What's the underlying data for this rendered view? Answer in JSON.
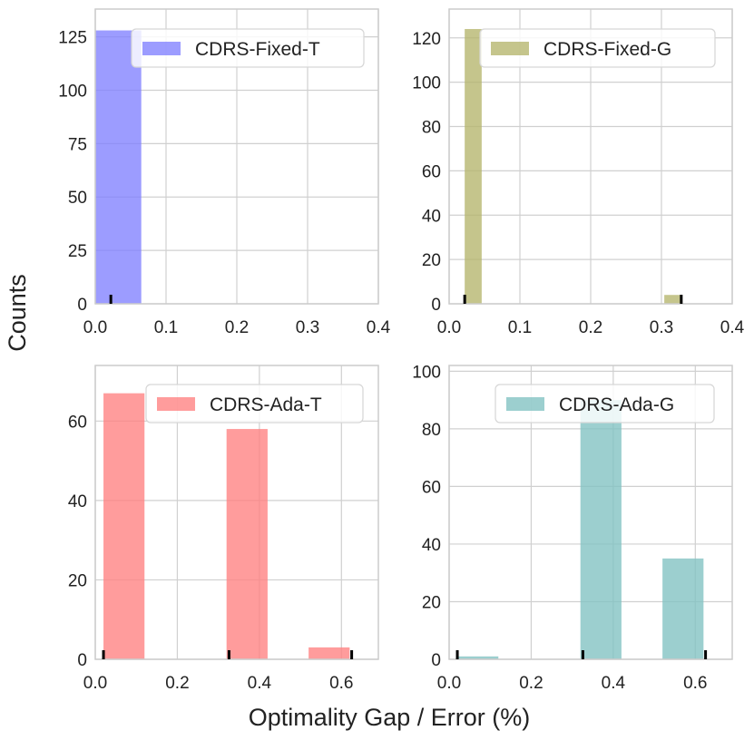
{
  "figure": {
    "ylabel": "Counts",
    "xlabel": "Optimality Gap / Error (%)"
  },
  "chart_data": [
    {
      "type": "bar",
      "name": "CDRS-Fixed-T",
      "legend": "CDRS-Fixed-T",
      "color": "#8080ff",
      "xlim": [
        0,
        0.4
      ],
      "ylim": [
        0,
        138
      ],
      "xticks": [
        0,
        0.1,
        0.2,
        0.3,
        0.4
      ],
      "xtick_labels": [
        "0.0",
        "0.1",
        "0.2",
        "0.3",
        "0.4"
      ],
      "yticks": [
        0,
        25,
        50,
        75,
        100,
        125
      ],
      "ytick_labels": [
        "0",
        "25",
        "50",
        "75",
        "100",
        "125"
      ],
      "bins": [
        {
          "x0": 0.0,
          "x1": 0.065,
          "count": 128
        }
      ],
      "rug": [
        0.022
      ]
    },
    {
      "type": "bar",
      "name": "CDRS-Fixed-G",
      "legend": "CDRS-Fixed-G",
      "color": "#b5b56b",
      "xlim": [
        0,
        0.4
      ],
      "ylim": [
        0,
        133
      ],
      "xticks": [
        0,
        0.1,
        0.2,
        0.3,
        0.4
      ],
      "xtick_labels": [
        "0.0",
        "0.1",
        "0.2",
        "0.3",
        "0.4"
      ],
      "yticks": [
        0,
        20,
        40,
        60,
        80,
        100,
        120
      ],
      "ytick_labels": [
        "0",
        "20",
        "40",
        "60",
        "80",
        "100",
        "120"
      ],
      "bins": [
        {
          "x0": 0.022,
          "x1": 0.046,
          "count": 124
        },
        {
          "x0": 0.304,
          "x1": 0.328,
          "count": 4
        }
      ],
      "rug": [
        0.022,
        0.328
      ]
    },
    {
      "type": "bar",
      "name": "CDRS-Ada-T",
      "legend": "CDRS-Ada-T",
      "color": "#ff8080",
      "xlim": [
        0,
        0.69
      ],
      "ylim": [
        0,
        74
      ],
      "xticks": [
        0,
        0.2,
        0.4,
        0.6
      ],
      "xtick_labels": [
        "0.0",
        "0.2",
        "0.4",
        "0.6"
      ],
      "yticks": [
        0,
        20,
        40,
        60
      ],
      "ytick_labels": [
        "0",
        "20",
        "40",
        "60"
      ],
      "bins": [
        {
          "x0": 0.02,
          "x1": 0.12,
          "count": 67
        },
        {
          "x0": 0.32,
          "x1": 0.42,
          "count": 58
        },
        {
          "x0": 0.52,
          "x1": 0.62,
          "count": 3
        }
      ],
      "rug": [
        0.02,
        0.326,
        0.625
      ]
    },
    {
      "type": "bar",
      "name": "CDRS-Ada-G",
      "legend": "CDRS-Ada-G",
      "color": "#80c2c2",
      "xlim": [
        0,
        0.69
      ],
      "ylim": [
        0,
        102
      ],
      "xticks": [
        0,
        0.2,
        0.4,
        0.6
      ],
      "xtick_labels": [
        "0.0",
        "0.2",
        "0.4",
        "0.6"
      ],
      "yticks": [
        0,
        20,
        40,
        60,
        80,
        100
      ],
      "ytick_labels": [
        "0",
        "20",
        "40",
        "60",
        "80",
        "100"
      ],
      "bins": [
        {
          "x0": 0.02,
          "x1": 0.12,
          "count": 1
        },
        {
          "x0": 0.32,
          "x1": 0.42,
          "count": 90
        },
        {
          "x0": 0.52,
          "x1": 0.62,
          "count": 35
        }
      ],
      "rug": [
        0.02,
        0.326,
        0.625
      ]
    }
  ]
}
